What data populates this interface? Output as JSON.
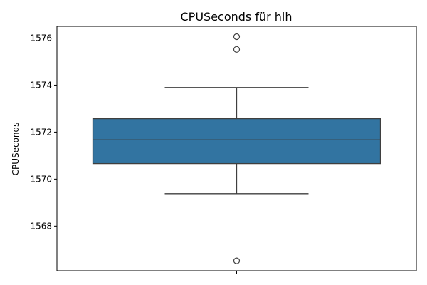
{
  "chart_data": {
    "type": "box",
    "title": "CPUSeconds für hlh",
    "xlabel": "",
    "ylabel": "CPUSeconds",
    "ylim": [
      1566.1,
      1576.5
    ],
    "yticks": [
      1568,
      1570,
      1572,
      1574,
      1576
    ],
    "grid": false,
    "colors": {
      "box_fill": "#3274a1",
      "line": "#3f3f3f",
      "frame": "#000000"
    },
    "box": {
      "whisker_low": 1569.38,
      "q1": 1570.66,
      "median": 1571.67,
      "q3": 1572.57,
      "whisker_high": 1573.9,
      "outliers": [
        1576.06,
        1575.52,
        1566.52
      ]
    }
  }
}
